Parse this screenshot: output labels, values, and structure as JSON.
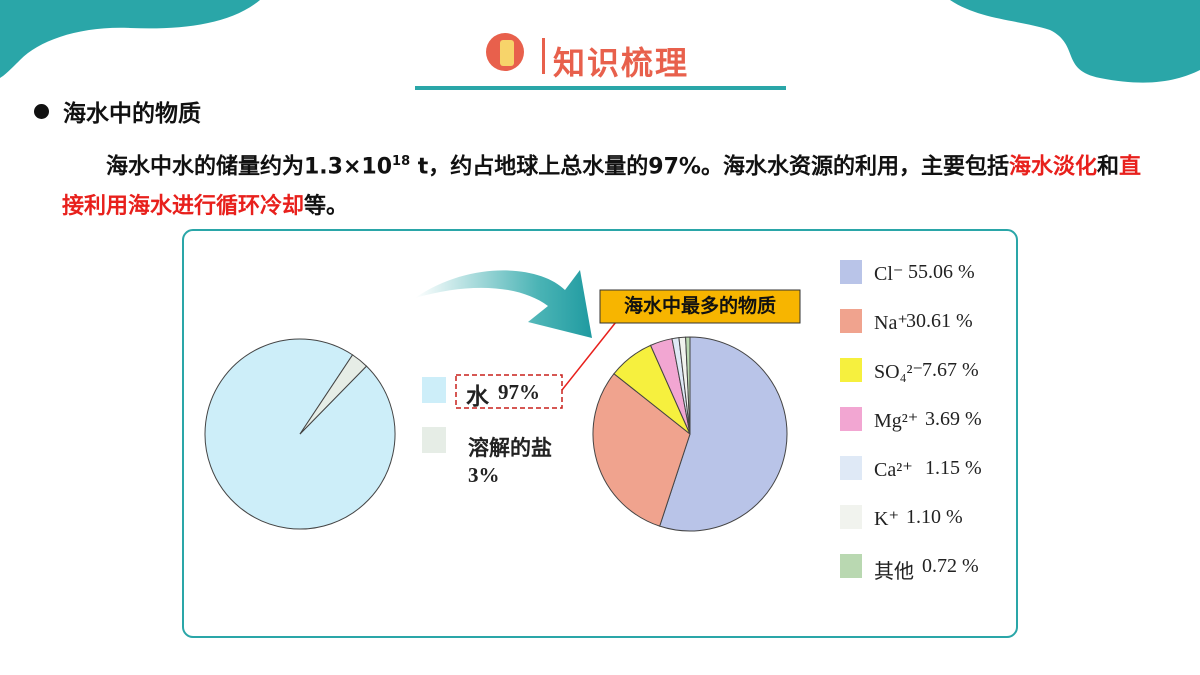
{
  "header": {
    "title": "知识梳理"
  },
  "section": {
    "bullet": "海水中的物质"
  },
  "paragraph": {
    "segments": [
      "海水中水的储量约为1.3×10",
      "18",
      " t，约占地球上总水量的97%。海水水资源的利用，主要包括",
      "海水淡化",
      "和",
      "直接利用海水进行循环冷却",
      "等。"
    ]
  },
  "chart_data": [
    {
      "type": "pie",
      "categories": [
        "水",
        "溶解的盐"
      ],
      "values": [
        97,
        3
      ],
      "value_labels": [
        "97%",
        "3%"
      ],
      "colors": [
        "#cdeef9",
        "#e6ede6"
      ]
    },
    {
      "type": "pie",
      "annotation": "海水中最多的物质",
      "categories": [
        "Cl⁻",
        "Na⁺",
        "SO₄²⁻",
        "Mg²⁺",
        "Ca²⁺",
        "K⁺",
        "其他"
      ],
      "values": [
        55.06,
        30.61,
        7.67,
        3.69,
        1.15,
        1.1,
        0.72
      ],
      "value_labels": [
        "55.06 %",
        "30.61 %",
        "7.67 %",
        "3.69 %",
        "1.15 %",
        "1.10 %",
        "0.72 %"
      ],
      "colors": [
        "#b9c4e8",
        "#f0a38e",
        "#f6f03e",
        "#f2a6d2",
        "#dfe9f6",
        "#f1f3ee",
        "#b9d8b1"
      ]
    }
  ]
}
